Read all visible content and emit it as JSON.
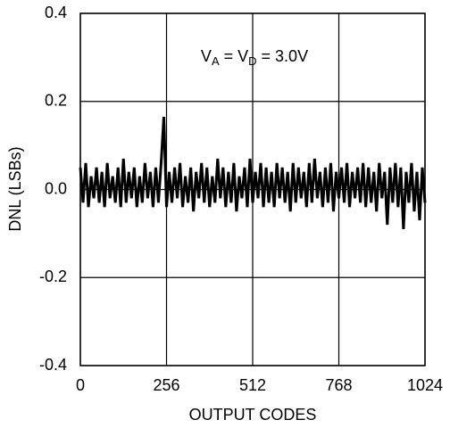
{
  "chart_data": {
    "type": "line",
    "xlabel": "OUTPUT CODES",
    "ylabel": "DNL (LSBs)",
    "annotation": [
      "V",
      "A",
      " = V",
      "D",
      " = 3.0V"
    ],
    "color": "#000000",
    "x": [
      0,
      8,
      16,
      24,
      32,
      40,
      48,
      56,
      64,
      72,
      80,
      88,
      96,
      104,
      112,
      120,
      128,
      136,
      144,
      152,
      160,
      168,
      176,
      184,
      192,
      200,
      208,
      216,
      224,
      232,
      240,
      248,
      256,
      264,
      272,
      280,
      288,
      296,
      304,
      312,
      320,
      328,
      336,
      344,
      352,
      360,
      368,
      376,
      384,
      392,
      400,
      408,
      416,
      424,
      432,
      440,
      448,
      456,
      464,
      472,
      480,
      488,
      496,
      504,
      512,
      520,
      528,
      536,
      544,
      552,
      560,
      568,
      576,
      584,
      592,
      600,
      608,
      616,
      624,
      632,
      640,
      648,
      656,
      664,
      672,
      680,
      688,
      696,
      704,
      712,
      720,
      728,
      736,
      744,
      752,
      760,
      768,
      776,
      784,
      792,
      800,
      808,
      816,
      824,
      832,
      840,
      848,
      856,
      864,
      872,
      880,
      888,
      896,
      904,
      912,
      920,
      928,
      936,
      944,
      952,
      960,
      968,
      976,
      984,
      992,
      1000,
      1008,
      1016,
      1024
    ],
    "values": [
      0.05,
      -0.03,
      0.06,
      -0.04,
      0.03,
      -0.02,
      0.05,
      -0.03,
      0.04,
      -0.04,
      0.06,
      -0.02,
      0.03,
      -0.03,
      0.05,
      -0.04,
      0.07,
      -0.03,
      0.04,
      -0.02,
      0.05,
      -0.04,
      0.03,
      -0.03,
      0.06,
      -0.02,
      0.04,
      -0.04,
      0.05,
      -0.03,
      0.06,
      0.165,
      -0.04,
      0.04,
      -0.03,
      0.05,
      -0.02,
      0.06,
      -0.04,
      0.03,
      -0.03,
      0.05,
      -0.05,
      0.04,
      -0.02,
      0.06,
      -0.03,
      0.05,
      -0.04,
      0.03,
      -0.03,
      0.07,
      -0.02,
      0.05,
      -0.04,
      0.04,
      -0.03,
      0.06,
      -0.05,
      0.03,
      -0.02,
      0.05,
      -0.04,
      0.07,
      -0.03,
      0.04,
      -0.02,
      0.06,
      -0.04,
      0.05,
      -0.03,
      0.04,
      -0.04,
      0.06,
      -0.02,
      0.05,
      -0.03,
      0.04,
      -0.05,
      0.06,
      -0.03,
      0.05,
      -0.02,
      0.04,
      -0.04,
      0.06,
      -0.03,
      0.07,
      -0.02,
      0.04,
      -0.04,
      0.05,
      -0.03,
      0.06,
      -0.05,
      0.04,
      -0.02,
      0.05,
      -0.03,
      0.06,
      -0.04,
      0.04,
      -0.02,
      0.05,
      -0.03,
      0.06,
      -0.04,
      0.05,
      -0.03,
      0.04,
      -0.05,
      0.06,
      -0.02,
      0.04,
      -0.08,
      0.05,
      -0.03,
      0.06,
      -0.04,
      0.05,
      -0.09,
      0.04,
      -0.03,
      0.06,
      -0.05,
      0.04,
      -0.07,
      0.05,
      -0.03
    ],
    "xlim": [
      0,
      1024
    ],
    "xticks": [
      0,
      256,
      512,
      768,
      1024
    ],
    "ylim": [
      -0.4,
      0.4
    ],
    "yticks": [
      0.4,
      0.2,
      {
        "value": 0,
        "label": "0.0"
      },
      -0.2,
      -0.4
    ],
    "grid": true
  }
}
